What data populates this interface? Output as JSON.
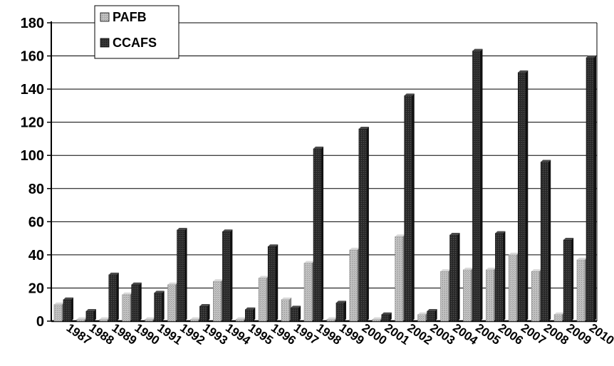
{
  "chart_data": {
    "type": "bar",
    "title": "",
    "xlabel": "",
    "ylabel": "",
    "ylim": [
      0,
      180
    ],
    "yticks": [
      0,
      20,
      40,
      60,
      80,
      100,
      120,
      140,
      160,
      180
    ],
    "grid": true,
    "legend_position": "top-left",
    "categories": [
      "1987",
      "1988",
      "1989",
      "1990",
      "1991",
      "1992",
      "1993",
      "1994",
      "1995",
      "1996",
      "1997",
      "1998",
      "1999",
      "2000",
      "2001",
      "2002",
      "2003",
      "2004",
      "2005",
      "2006",
      "2007",
      "2008",
      "2009",
      "2010"
    ],
    "series": [
      {
        "name": "PAFB",
        "color": "#b3b3b3",
        "values": [
          10,
          1,
          1,
          16,
          1,
          22,
          1,
          24,
          1,
          26,
          13,
          35,
          1,
          43,
          1,
          51,
          4,
          30,
          31,
          31,
          40,
          30,
          4,
          37
        ]
      },
      {
        "name": "CCAFS",
        "color": "#2e2e2e",
        "values": [
          13,
          6,
          28,
          22,
          17,
          55,
          9,
          54,
          7,
          45,
          8,
          104,
          11,
          116,
          4,
          136,
          6,
          52,
          163,
          53,
          150,
          96,
          49,
          159
        ]
      }
    ]
  }
}
